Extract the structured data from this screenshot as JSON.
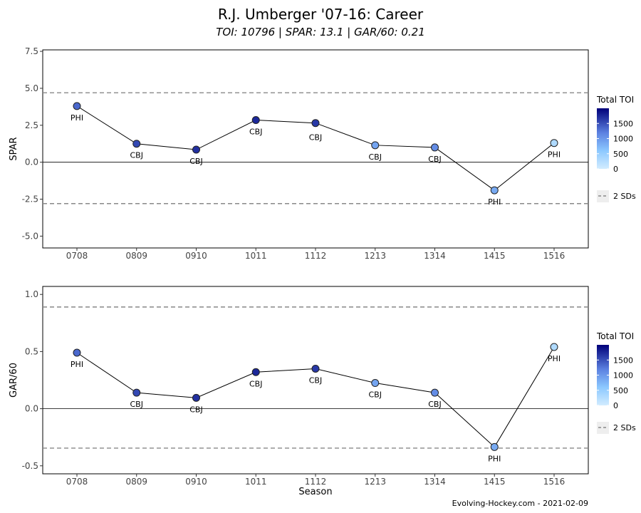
{
  "title": "R.J. Umberger '07-16: Career",
  "subtitle": "TOI: 10796 | SPAR: 13.1 | GAR/60: 0.21",
  "credit": "Evolving-Hockey.com - 2021-02-09",
  "chart_data": [
    {
      "type": "line",
      "ylabel": "SPAR",
      "xlabel": "",
      "categories": [
        "0708",
        "0809",
        "0910",
        "1011",
        "1112",
        "1213",
        "1314",
        "1415",
        "1516"
      ],
      "values": [
        3.8,
        1.25,
        0.85,
        2.85,
        2.65,
        1.15,
        1.0,
        -1.9,
        1.3
      ],
      "teams": [
        "PHI",
        "CBJ",
        "CBJ",
        "CBJ",
        "CBJ",
        "CBJ",
        "CBJ",
        "PHI",
        "PHI"
      ],
      "toi": [
        1350,
        1550,
        1700,
        1750,
        1650,
        900,
        1100,
        850,
        300
      ],
      "ylim": [
        -5.8,
        7.6
      ],
      "yticks": [
        -5.0,
        -2.5,
        0.0,
        2.5,
        5.0,
        7.5
      ],
      "ytick_labels": [
        "-5.0",
        "-2.5",
        "0.0",
        "2.5",
        "5.0",
        "7.5"
      ],
      "sd_lines": [
        4.7,
        -2.8
      ],
      "zero_line": 0,
      "legend": {
        "title": "Total TOI",
        "ticks": [
          0,
          500,
          1000,
          1500
        ],
        "max": 2000,
        "sd_label": "2 SDs",
        "position": "right"
      }
    },
    {
      "type": "line",
      "ylabel": "GAR/60",
      "xlabel": "Season",
      "categories": [
        "0708",
        "0809",
        "0910",
        "1011",
        "1112",
        "1213",
        "1314",
        "1415",
        "1516"
      ],
      "values": [
        0.49,
        0.14,
        0.095,
        0.32,
        0.35,
        0.225,
        0.14,
        -0.335,
        0.54
      ],
      "teams": [
        "PHI",
        "CBJ",
        "CBJ",
        "CBJ",
        "CBJ",
        "CBJ",
        "CBJ",
        "PHI",
        "PHI"
      ],
      "toi": [
        1350,
        1550,
        1700,
        1750,
        1650,
        900,
        1100,
        850,
        300
      ],
      "ylim": [
        -0.57,
        1.07
      ],
      "yticks": [
        -0.5,
        0.0,
        0.5,
        1.0
      ],
      "ytick_labels": [
        "-0.5",
        "0.0",
        "0.5",
        "1.0"
      ],
      "sd_lines": [
        0.89,
        -0.345
      ],
      "zero_line": 0,
      "legend": {
        "title": "Total TOI",
        "ticks": [
          0,
          500,
          1000,
          1500
        ],
        "max": 2000,
        "sd_label": "2 SDs",
        "position": "right"
      }
    }
  ],
  "colors": {
    "low": "#d2ecff",
    "mid": "#5f9cf2",
    "high": "#00007a",
    "line": "#000000",
    "sd": "#888888",
    "panel_border": "#000000"
  }
}
